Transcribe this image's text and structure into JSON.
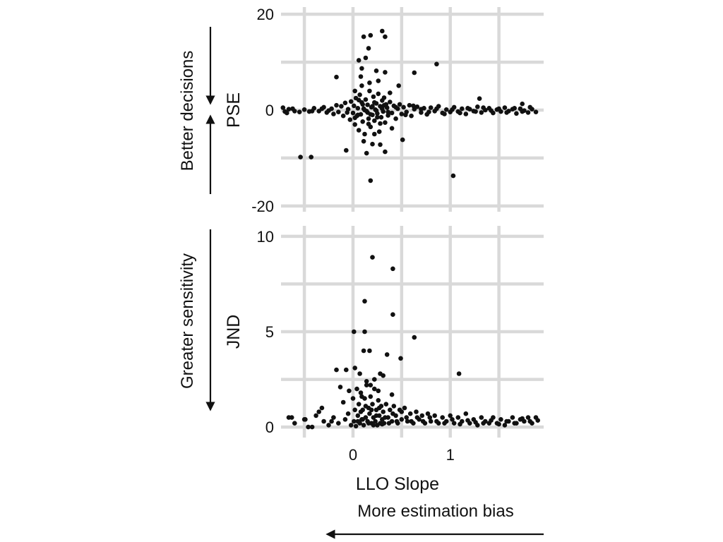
{
  "annotations": {
    "better_decisions": "Better decisions",
    "greater_sensitivity": "Greater sensitivity",
    "more_bias": "More estimation bias"
  },
  "colors": {
    "points": "#111111",
    "grid": "#d9d9d9",
    "text": "#111111"
  },
  "chart_data": [
    {
      "type": "scatter",
      "ylabel": "PSE",
      "xlim": [
        -0.74,
        1.96
      ],
      "ylim": [
        -21.2,
        21.5
      ],
      "grid": true,
      "xgrid": [
        -0.5,
        0,
        0.5,
        1,
        1.5
      ],
      "ygrid": [
        -20,
        -10,
        0,
        10,
        20
      ],
      "yticks": [
        20,
        0,
        -20
      ],
      "yticklabels": [
        "20",
        "0",
        "-20"
      ],
      "points": [
        [
          0.11,
          15.3
        ],
        [
          0.18,
          15.6
        ],
        [
          0.3,
          16.5
        ],
        [
          0.33,
          15.3
        ],
        [
          0.16,
          12.9
        ],
        [
          0.06,
          10.4
        ],
        [
          0.13,
          10.9
        ],
        [
          0.09,
          8.7
        ],
        [
          0.24,
          8.2
        ],
        [
          0.33,
          7.9
        ],
        [
          -0.17,
          6.9
        ],
        [
          0.63,
          7.8
        ],
        [
          0.86,
          9.6
        ],
        [
          0.09,
          5.1
        ],
        [
          0.17,
          5.7
        ],
        [
          0.47,
          5.1
        ],
        [
          1.3,
          2.4
        ],
        [
          -0.54,
          -9.8
        ],
        [
          -0.43,
          -9.8
        ],
        [
          -0.07,
          -8.4
        ],
        [
          0.18,
          -14.7
        ],
        [
          1.03,
          -13.7
        ],
        [
          0.33,
          -8.7
        ],
        [
          0.28,
          -7.2
        ],
        [
          0.2,
          -7.1
        ],
        [
          0.51,
          -6.2
        ],
        [
          0.11,
          -6.5
        ],
        [
          0.22,
          -5.0
        ],
        [
          1.74,
          1.3
        ],
        [
          0.26,
          6.1
        ],
        [
          0.02,
          4.0
        ],
        [
          0.38,
          3.6
        ],
        [
          0.14,
          -9.0
        ],
        [
          0.4,
          -3.8
        ],
        [
          0.08,
          7.0
        ],
        [
          -0.72,
          0.5
        ],
        [
          -0.7,
          -0.3
        ],
        [
          -0.66,
          0.2
        ],
        [
          -0.6,
          -0.2
        ],
        [
          -0.55,
          -0.4
        ],
        [
          -0.5,
          0.1
        ],
        [
          -0.45,
          -0.3
        ],
        [
          -0.4,
          0.4
        ],
        [
          -0.35,
          -0.2
        ],
        [
          -0.3,
          0.6
        ],
        [
          -0.27,
          -0.5
        ],
        [
          -0.22,
          0.3
        ],
        [
          -0.2,
          -0.8
        ],
        [
          -0.17,
          1.0
        ],
        [
          -0.15,
          -0.4
        ],
        [
          -0.12,
          0.8
        ],
        [
          -0.1,
          -1.2
        ],
        [
          -0.08,
          1.5
        ],
        [
          -0.06,
          -0.5
        ],
        [
          -0.05,
          0.2
        ],
        [
          -0.03,
          -2.0
        ],
        [
          -0.02,
          1.8
        ],
        [
          0.0,
          -0.6
        ],
        [
          0.01,
          0.9
        ],
        [
          0.02,
          -3.0
        ],
        [
          0.03,
          2.5
        ],
        [
          0.04,
          -1.2
        ],
        [
          0.05,
          0.4
        ],
        [
          0.06,
          -4.2
        ],
        [
          0.07,
          3.2
        ],
        [
          0.08,
          -0.9
        ],
        [
          0.09,
          1.6
        ],
        [
          0.1,
          -2.4
        ],
        [
          0.11,
          0.3
        ],
        [
          0.12,
          -5.0
        ],
        [
          0.13,
          2.2
        ],
        [
          0.14,
          -0.2
        ],
        [
          0.15,
          1.1
        ],
        [
          0.16,
          -1.8
        ],
        [
          0.17,
          4.0
        ],
        [
          0.18,
          -3.5
        ],
        [
          0.19,
          0.6
        ],
        [
          0.2,
          -1.0
        ],
        [
          0.21,
          2.8
        ],
        [
          0.22,
          -2.2
        ],
        [
          0.23,
          0.1
        ],
        [
          0.24,
          1.4
        ],
        [
          0.25,
          -0.7
        ],
        [
          0.26,
          3.4
        ],
        [
          0.27,
          -4.5
        ],
        [
          0.28,
          0.8
        ],
        [
          0.29,
          -1.5
        ],
        [
          0.3,
          2.0
        ],
        [
          0.31,
          -0.3
        ],
        [
          0.32,
          1.0
        ],
        [
          0.33,
          -2.6
        ],
        [
          0.35,
          0.5
        ],
        [
          0.36,
          -1.1
        ],
        [
          0.38,
          1.7
        ],
        [
          0.4,
          -0.6
        ],
        [
          0.42,
          0.9
        ],
        [
          0.44,
          -1.8
        ],
        [
          0.46,
          0.3
        ],
        [
          0.48,
          1.2
        ],
        [
          0.5,
          -0.8
        ],
        [
          0.52,
          0.6
        ],
        [
          0.55,
          -0.4
        ],
        [
          0.58,
          1.0
        ],
        [
          0.6,
          -1.2
        ],
        [
          0.63,
          0.2
        ],
        [
          0.66,
          0.7
        ],
        [
          0.7,
          -0.5
        ],
        [
          0.73,
          0.4
        ],
        [
          0.76,
          -0.9
        ],
        [
          0.8,
          0.5
        ],
        [
          0.84,
          -0.2
        ],
        [
          0.88,
          0.8
        ],
        [
          0.92,
          -0.6
        ],
        [
          0.96,
          0.1
        ],
        [
          1.0,
          -0.4
        ],
        [
          1.04,
          0.6
        ],
        [
          1.08,
          -0.3
        ],
        [
          1.12,
          0.3
        ],
        [
          1.16,
          -0.8
        ],
        [
          1.2,
          0.2
        ],
        [
          1.24,
          -0.2
        ],
        [
          1.28,
          0.7
        ],
        [
          1.32,
          -0.5
        ],
        [
          1.36,
          0.0
        ],
        [
          1.4,
          0.4
        ],
        [
          1.44,
          -0.6
        ],
        [
          1.48,
          0.1
        ],
        [
          1.52,
          -0.3
        ],
        [
          1.56,
          0.5
        ],
        [
          1.6,
          -0.2
        ],
        [
          1.64,
          0.2
        ],
        [
          1.68,
          -0.7
        ],
        [
          1.72,
          0.3
        ],
        [
          1.76,
          -0.1
        ],
        [
          1.8,
          -0.5
        ],
        [
          1.84,
          0.2
        ],
        [
          1.88,
          -0.4
        ],
        [
          0.05,
          -1.0
        ],
        [
          0.1,
          1.2
        ],
        [
          0.15,
          -0.5
        ],
        [
          0.2,
          0.8
        ],
        [
          0.25,
          -1.5
        ],
        [
          0.3,
          0.3
        ],
        [
          0.12,
          0.0
        ],
        [
          0.18,
          -0.9
        ],
        [
          0.22,
          1.6
        ],
        [
          0.28,
          -2.8
        ],
        [
          0.34,
          1.2
        ],
        [
          0.02,
          -1.6
        ],
        [
          0.06,
          2.1
        ],
        [
          0.16,
          -2.9
        ],
        [
          0.24,
          -0.1
        ],
        [
          0.32,
          2.6
        ],
        [
          0.36,
          -0.4
        ],
        [
          0.44,
          0.6
        ],
        [
          0.54,
          -1.0
        ],
        [
          0.62,
          0.9
        ],
        [
          0.7,
          0.2
        ],
        [
          0.78,
          -0.4
        ],
        [
          0.86,
          0.3
        ],
        [
          0.94,
          -0.8
        ],
        [
          1.02,
          0.1
        ],
        [
          1.1,
          -0.6
        ],
        [
          1.18,
          0.4
        ],
        [
          1.26,
          -0.3
        ],
        [
          1.34,
          0.5
        ],
        [
          1.42,
          -0.1
        ],
        [
          1.5,
          0.3
        ],
        [
          1.58,
          -0.5
        ],
        [
          1.66,
          0.4
        ],
        [
          1.74,
          -0.3
        ],
        [
          1.82,
          0.6
        ],
        [
          -0.25,
          -0.1
        ],
        [
          -0.32,
          0.3
        ],
        [
          -0.42,
          -0.2
        ],
        [
          -0.62,
          0.3
        ],
        [
          -0.68,
          -0.6
        ]
      ]
    },
    {
      "type": "scatter",
      "ylabel": "JND",
      "xlabel": "LLO Slope",
      "xlim": [
        -0.74,
        1.96
      ],
      "ylim": [
        -0.55,
        10.55
      ],
      "grid": true,
      "xgrid": [
        -0.5,
        0,
        0.5,
        1,
        1.5
      ],
      "ygrid": [
        0,
        2.5,
        5,
        7.5,
        10
      ],
      "yticks": [
        10,
        5,
        0
      ],
      "yticklabels": [
        "10",
        "5",
        "0"
      ],
      "xticks": [
        0,
        1
      ],
      "xticklabels": [
        "0",
        "1"
      ],
      "points": [
        [
          0.2,
          8.9
        ],
        [
          0.41,
          8.3
        ],
        [
          0.12,
          6.6
        ],
        [
          0.41,
          5.9
        ],
        [
          0.63,
          4.7
        ],
        [
          0.01,
          5.0
        ],
        [
          0.12,
          5.0
        ],
        [
          0.11,
          4.0
        ],
        [
          0.17,
          4.0
        ],
        [
          0.49,
          3.6
        ],
        [
          0.35,
          3.8
        ],
        [
          1.09,
          2.8
        ],
        [
          -0.17,
          3.0
        ],
        [
          -0.07,
          3.0
        ],
        [
          0.02,
          3.1
        ],
        [
          0.07,
          2.8
        ],
        [
          0.28,
          2.8
        ],
        [
          0.31,
          2.7
        ],
        [
          0.14,
          2.4
        ],
        [
          -0.13,
          2.1
        ],
        [
          -0.04,
          1.9
        ],
        [
          0.4,
          1.7
        ],
        [
          -0.32,
          1.0
        ],
        [
          -0.38,
          0.6
        ],
        [
          -0.63,
          0.5
        ],
        [
          -0.49,
          0.4
        ],
        [
          -0.46,
          0.0
        ],
        [
          -0.22,
          0.3
        ],
        [
          1.88,
          0.5
        ],
        [
          0.22,
          2.5
        ],
        [
          0.18,
          2.2
        ],
        [
          0.26,
          1.9
        ],
        [
          0.09,
          1.6
        ],
        [
          -0.66,
          0.5
        ],
        [
          -0.6,
          0.2
        ],
        [
          -0.5,
          0.4
        ],
        [
          -0.42,
          0.0
        ],
        [
          -0.35,
          0.8
        ],
        [
          -0.3,
          0.3
        ],
        [
          -0.25,
          0.1
        ],
        [
          -0.2,
          0.5
        ],
        [
          -0.15,
          0.2
        ],
        [
          -0.1,
          1.3
        ],
        [
          -0.08,
          0.4
        ],
        [
          -0.05,
          0.7
        ],
        [
          -0.02,
          0.1
        ],
        [
          0.0,
          1.5
        ],
        [
          0.01,
          0.3
        ],
        [
          0.02,
          0.9
        ],
        [
          0.03,
          0.05
        ],
        [
          0.04,
          2.0
        ],
        [
          0.05,
          0.6
        ],
        [
          0.06,
          1.2
        ],
        [
          0.07,
          0.2
        ],
        [
          0.08,
          1.8
        ],
        [
          0.09,
          0.4
        ],
        [
          0.1,
          0.9
        ],
        [
          0.11,
          0.1
        ],
        [
          0.12,
          1.5
        ],
        [
          0.13,
          0.5
        ],
        [
          0.14,
          2.2
        ],
        [
          0.15,
          0.3
        ],
        [
          0.16,
          1.0
        ],
        [
          0.17,
          0.7
        ],
        [
          0.18,
          1.6
        ],
        [
          0.19,
          0.2
        ],
        [
          0.2,
          1.2
        ],
        [
          0.21,
          0.5
        ],
        [
          0.22,
          2.0
        ],
        [
          0.23,
          0.3
        ],
        [
          0.24,
          0.9
        ],
        [
          0.25,
          0.1
        ],
        [
          0.26,
          1.4
        ],
        [
          0.27,
          0.6
        ],
        [
          0.28,
          0.2
        ],
        [
          0.29,
          1.1
        ],
        [
          0.3,
          0.4
        ],
        [
          0.31,
          0.8
        ],
        [
          0.32,
          0.2
        ],
        [
          0.34,
          1.2
        ],
        [
          0.36,
          0.5
        ],
        [
          0.38,
          0.9
        ],
        [
          0.4,
          0.3
        ],
        [
          0.42,
          1.1
        ],
        [
          0.44,
          0.6
        ],
        [
          0.46,
          0.2
        ],
        [
          0.48,
          0.9
        ],
        [
          0.5,
          0.4
        ],
        [
          0.53,
          1.0
        ],
        [
          0.56,
          0.3
        ],
        [
          0.59,
          0.7
        ],
        [
          0.62,
          0.2
        ],
        [
          0.65,
          0.8
        ],
        [
          0.68,
          0.4
        ],
        [
          0.71,
          0.6
        ],
        [
          0.74,
          0.2
        ],
        [
          0.77,
          0.7
        ],
        [
          0.8,
          0.3
        ],
        [
          0.84,
          0.6
        ],
        [
          0.88,
          0.2
        ],
        [
          0.92,
          0.5
        ],
        [
          0.96,
          0.3
        ],
        [
          1.0,
          0.6
        ],
        [
          1.04,
          0.2
        ],
        [
          1.08,
          0.5
        ],
        [
          1.12,
          0.3
        ],
        [
          1.16,
          0.7
        ],
        [
          1.2,
          0.2
        ],
        [
          1.24,
          0.4
        ],
        [
          1.28,
          0.1
        ],
        [
          1.32,
          0.5
        ],
        [
          1.36,
          0.3
        ],
        [
          1.4,
          0.2
        ],
        [
          1.44,
          0.5
        ],
        [
          1.48,
          0.2
        ],
        [
          1.52,
          0.4
        ],
        [
          1.56,
          0.1
        ],
        [
          1.6,
          0.3
        ],
        [
          1.64,
          0.5
        ],
        [
          1.68,
          0.2
        ],
        [
          1.72,
          0.4
        ],
        [
          1.76,
          0.3
        ],
        [
          1.8,
          0.5
        ],
        [
          1.84,
          0.2
        ],
        [
          0.05,
          0.3
        ],
        [
          0.08,
          0.8
        ],
        [
          0.1,
          0.4
        ],
        [
          0.13,
          1.1
        ],
        [
          0.16,
          0.2
        ],
        [
          0.19,
          0.9
        ],
        [
          0.21,
          0.1
        ],
        [
          0.24,
          0.6
        ],
        [
          0.27,
          1.0
        ],
        [
          0.3,
          0.15
        ],
        [
          0.33,
          0.5
        ],
        [
          0.37,
          0.2
        ],
        [
          0.41,
          0.7
        ],
        [
          0.45,
          0.3
        ],
        [
          0.5,
          0.8
        ],
        [
          0.55,
          0.5
        ],
        [
          0.6,
          0.3
        ],
        [
          0.66,
          0.5
        ],
        [
          0.72,
          0.3
        ],
        [
          0.79,
          0.5
        ],
        [
          0.86,
          0.3
        ],
        [
          0.94,
          0.2
        ],
        [
          1.02,
          0.4
        ],
        [
          1.1,
          0.15
        ],
        [
          1.18,
          0.35
        ],
        [
          1.26,
          0.25
        ],
        [
          1.34,
          0.2
        ],
        [
          1.42,
          0.35
        ],
        [
          1.5,
          0.15
        ],
        [
          1.58,
          0.3
        ],
        [
          1.66,
          0.2
        ],
        [
          1.74,
          0.45
        ],
        [
          1.82,
          0.3
        ],
        [
          1.9,
          0.35
        ]
      ]
    }
  ]
}
